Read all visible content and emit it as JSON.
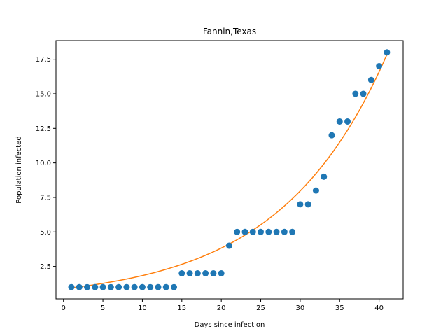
{
  "chart_data": {
    "type": "scatter",
    "title": "Fannin,Texas",
    "xlabel": "Days since infection",
    "ylabel": "Population infected",
    "xlim": [
      -0.95,
      43.05
    ],
    "ylim": [
      0.15,
      18.85
    ],
    "xticks": [
      0,
      5,
      10,
      15,
      20,
      25,
      30,
      35,
      40
    ],
    "xtick_labels": [
      "0",
      "5",
      "10",
      "15",
      "20",
      "25",
      "30",
      "35",
      "40"
    ],
    "yticks": [
      2.5,
      5.0,
      7.5,
      10.0,
      12.5,
      15.0,
      17.5
    ],
    "ytick_labels": [
      "2.5",
      "5.0",
      "7.5",
      "10.0",
      "12.5",
      "15.0",
      "17.5"
    ],
    "grid": false,
    "series": [
      {
        "kind": "scatter",
        "color": "#1f77b4",
        "x": [
          1,
          2,
          3,
          4,
          5,
          6,
          7,
          8,
          9,
          10,
          11,
          12,
          13,
          14,
          15,
          16,
          17,
          18,
          19,
          20,
          21,
          22,
          23,
          24,
          25,
          26,
          27,
          28,
          29,
          30,
          31,
          32,
          33,
          34,
          35,
          36,
          37,
          38,
          39,
          40,
          41
        ],
        "y": [
          1,
          1,
          1,
          1,
          1,
          1,
          1,
          1,
          1,
          1,
          1,
          1,
          1,
          1,
          2,
          2,
          2,
          2,
          2,
          2,
          4,
          5,
          5,
          5,
          5,
          5,
          5,
          5,
          5,
          7,
          7,
          8,
          9,
          12,
          13,
          13,
          15,
          15,
          16,
          17,
          18
        ]
      },
      {
        "kind": "line",
        "color": "#ff7f0e",
        "x": [
          1,
          41
        ],
        "y": [
          0.95,
          17.85
        ],
        "curve": "exponential"
      }
    ]
  }
}
